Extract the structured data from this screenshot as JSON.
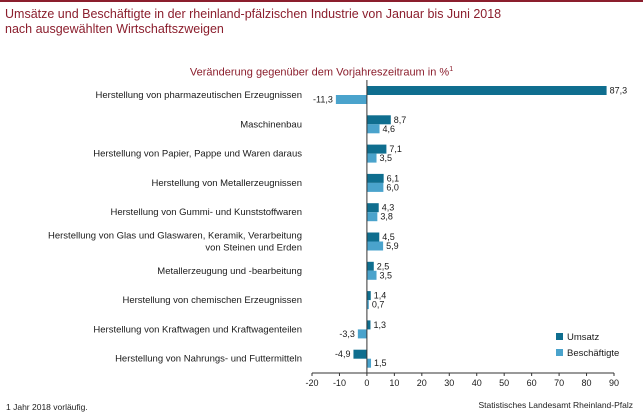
{
  "header": {
    "title_line1": "Umsätze und Beschäftigte in der rheinland-pfälzischen Industrie von Januar bis Juni 2018",
    "title_line2": "nach ausgewählten Wirtschaftszweigen"
  },
  "subtitle_text": "Veränderung gegenüber dem Vorjahreszeitraum in %",
  "subtitle_sup": "1",
  "footnote": "1 Jahr 2018 vorläufig.",
  "source": "Statistisches Landesamt Rheinland-Pfalz",
  "colors": {
    "umsatz": "#0f6e8f",
    "beschaeftigte": "#4aa3cc",
    "title": "#8b1e2d"
  },
  "chart_data": {
    "type": "bar",
    "orientation": "horizontal",
    "categories": [
      [
        "Herstellung von pharmazeutischen Erzeugnissen"
      ],
      [
        "Maschinenbau"
      ],
      [
        "Herstellung von Papier, Pappe und Waren daraus"
      ],
      [
        "Herstellung von Metallerzeugnissen"
      ],
      [
        "Herstellung von Gummi- und Kunststoffwaren"
      ],
      [
        "Herstellung von Glas und Glaswaren, Keramik, Verarbeitung",
        "von Steinen und Erden"
      ],
      [
        "Metallerzeugung und -bearbeitung"
      ],
      [
        "Herstellung von chemischen Erzeugnissen"
      ],
      [
        "Herstellung von Kraftwagen und Kraftwagenteilen"
      ],
      [
        "Herstellung von Nahrungs- und Futtermitteln"
      ]
    ],
    "series": [
      {
        "name": "Umsatz",
        "values": [
          87.3,
          8.7,
          7.1,
          6.1,
          4.3,
          4.5,
          2.5,
          1.4,
          1.3,
          -4.9
        ],
        "labels": [
          "87,3",
          "8,7",
          "7,1",
          "6,1",
          "4,3",
          "4,5",
          "2,5",
          "1,4",
          "1,3",
          "-4,9"
        ]
      },
      {
        "name": "Beschäftigte",
        "values": [
          -11.3,
          4.6,
          3.5,
          6.0,
          3.8,
          5.9,
          3.5,
          0.7,
          -3.3,
          1.5
        ],
        "labels": [
          "-11,3",
          "4,6",
          "3,5",
          "6,0",
          "3,8",
          "5,9",
          "3,5",
          "0,7",
          "-3,3",
          "1,5"
        ]
      }
    ],
    "xlim": [
      -20,
      90
    ],
    "xticks": [
      -20,
      -10,
      0,
      10,
      20,
      30,
      40,
      50,
      60,
      70,
      80,
      90
    ],
    "xtick_labels": [
      "-20",
      "-10",
      "0",
      "10",
      "20",
      "30",
      "40",
      "50",
      "60",
      "70",
      "80",
      "90"
    ],
    "grid": false,
    "legend": "bottom-right"
  }
}
